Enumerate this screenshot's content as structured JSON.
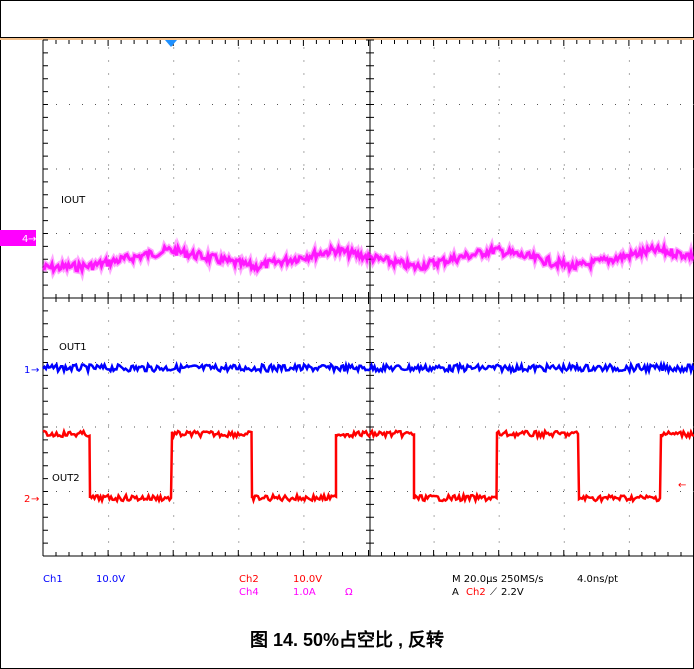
{
  "caption": "图 14. 50%占空比 , 反转",
  "chart_data": {
    "type": "line",
    "title": "",
    "xlabel": "",
    "ylabel": "",
    "grid": true,
    "x_divisions": 10,
    "y_divisions": 8,
    "channels": [
      {
        "name": "IOUT",
        "marker": "4",
        "color": "#ff00ff",
        "shape": "triangle ripple"
      },
      {
        "name": "OUT1",
        "marker": "1",
        "color": "#0000ff",
        "shape": "flat"
      },
      {
        "name": "OUT2",
        "marker": "2",
        "color": "#ff0000",
        "shape": "square wave, 50% duty"
      }
    ],
    "settings": {
      "ch1_label": "Ch1",
      "ch1_scale": "10.0V",
      "ch2_label": "Ch2",
      "ch2_scale": "10.0V",
      "ch4_label": "Ch4",
      "ch4_scale": "1.0A",
      "ch4_unit": "Ω",
      "timebase": "M 20.0µs 250MS/s",
      "resolution": "4.0ns/pt",
      "trigger_prefix": "A",
      "trigger_channel": "Ch2",
      "trigger_slope": "⟋",
      "trigger_level": "2.2V"
    },
    "colors": {
      "ch1": "#0000ff",
      "ch2": "#ff0000",
      "ch4": "#ff00ff",
      "trigger": "#1e90ff",
      "grid": "#000000"
    }
  }
}
